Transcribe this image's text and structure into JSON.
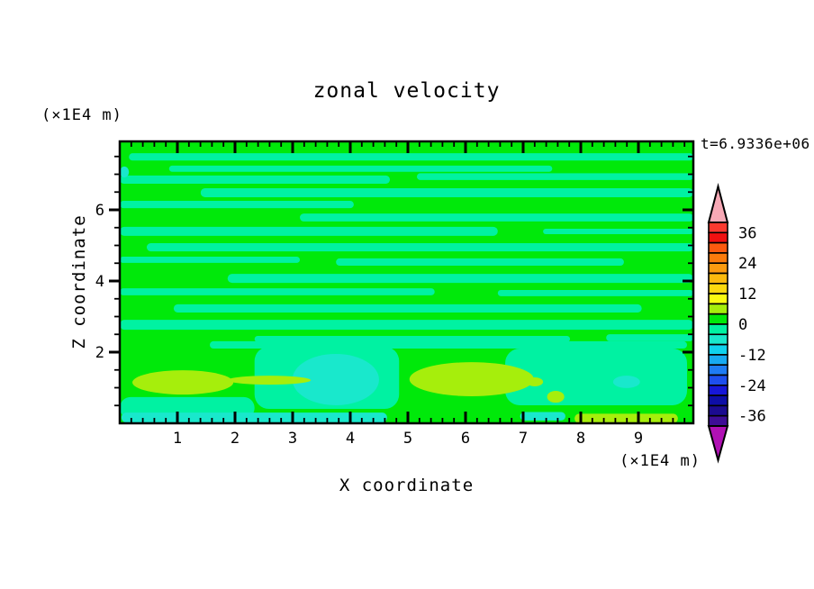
{
  "title": "zonal velocity",
  "timestamp": "t=6.9336e+06",
  "axes": {
    "x_label": "X coordinate",
    "y_label": "Z coordinate",
    "x_units": "(×1E4 m)",
    "y_units": "(×1E4 m)",
    "x_ticks": [
      1,
      2,
      3,
      4,
      5,
      6,
      7,
      8,
      9
    ],
    "y_ticks": [
      2,
      4,
      6
    ],
    "x_minor_per_major": 5,
    "y_minor_per_major": 4
  },
  "colorbar": {
    "labels": [
      36,
      24,
      12,
      0,
      -12,
      -24,
      -36
    ],
    "level_min": -40,
    "level_max": 40,
    "cell_step": 4,
    "cell_colors_top_to_bottom": [
      "#FB3A30",
      "#F01111",
      "#FC5A0F",
      "#FB7B0C",
      "#FC9B10",
      "#FBBA0E",
      "#FCD90F",
      "#FBFA11",
      "#A6EE0C",
      "#00E90A",
      "#00F2A2",
      "#19E8CC",
      "#10D2EE",
      "#18AAF2",
      "#1F7CF4",
      "#1E4FEE",
      "#1717D8",
      "#0E0EA6",
      "#1C0B90",
      "#3F0D96"
    ],
    "over_arrow_color": "#F7A9B6",
    "under_arrow_color": "#B011B4"
  },
  "chart_data": {
    "type": "heatmap",
    "title": "zonal velocity",
    "xlabel": "X coordinate (×1E4 m)",
    "ylabel": "Z coordinate (×1E4 m)",
    "x_range": [
      0,
      10
    ],
    "y_range": [
      0,
      7.9
    ],
    "time_annotation": "t=6.9336e+06",
    "contour_levels": "filled contours every 4 units from -40 to 40",
    "field_summary": "Field values mostly between -4 and +4 (greens) arranged in wavy horizontal streaks; near the bottom boundary there are patches of -8..-4 (turquoise) and +4..+8 (yellow-green).",
    "level_colors": {
      "0..4": "#00E90A",
      "-4..0": "#00F2A2",
      "-8..-4": "#19E8CC",
      "4..8": "#A6EE0C"
    },
    "background_level": "0..4",
    "bands": [
      {
        "level": "-4..0",
        "shape": "rect",
        "x": [
          0.016,
          1.0
        ],
        "y": [
          0.042,
          0.068
        ]
      },
      {
        "level": "-4..0",
        "shape": "rect",
        "x": [
          0.086,
          0.754
        ],
        "y": [
          0.086,
          0.108
        ]
      },
      {
        "level": "-4..0",
        "shape": "rect",
        "x": [
          0.0,
          0.471
        ],
        "y": [
          0.121,
          0.15
        ]
      },
      {
        "level": "-4..0",
        "shape": "rect",
        "x": [
          0.518,
          1.0
        ],
        "y": [
          0.113,
          0.137
        ]
      },
      {
        "level": "-4..0",
        "shape": "rect",
        "x": [
          0.141,
          1.0
        ],
        "y": [
          0.166,
          0.198
        ]
      },
      {
        "level": "-4..0",
        "shape": "rect",
        "x": [
          0.0,
          0.408
        ],
        "y": [
          0.211,
          0.237
        ]
      },
      {
        "level": "-4..0",
        "shape": "rect",
        "x": [
          0.314,
          1.0
        ],
        "y": [
          0.256,
          0.284
        ]
      },
      {
        "level": "-4..0",
        "shape": "rect",
        "x": [
          0.0,
          0.659
        ],
        "y": [
          0.303,
          0.335
        ]
      },
      {
        "level": "-4..0",
        "shape": "rect",
        "x": [
          0.738,
          1.0
        ],
        "y": [
          0.31,
          0.329
        ]
      },
      {
        "level": "-4..0",
        "shape": "rect",
        "x": [
          0.047,
          1.0
        ],
        "y": [
          0.361,
          0.39
        ]
      },
      {
        "level": "-4..0",
        "shape": "rect",
        "x": [
          0.0,
          0.314
        ],
        "y": [
          0.409,
          0.431
        ]
      },
      {
        "level": "-4..0",
        "shape": "rect",
        "x": [
          0.377,
          0.879
        ],
        "y": [
          0.415,
          0.441
        ]
      },
      {
        "level": "-4..0",
        "shape": "rect",
        "x": [
          0.188,
          1.0
        ],
        "y": [
          0.47,
          0.502
        ]
      },
      {
        "level": "-4..0",
        "shape": "rect",
        "x": [
          0.0,
          0.549
        ],
        "y": [
          0.521,
          0.546
        ]
      },
      {
        "level": "-4..0",
        "shape": "rect",
        "x": [
          0.659,
          1.0
        ],
        "y": [
          0.527,
          0.549
        ]
      },
      {
        "level": "-4..0",
        "shape": "rect",
        "x": [
          0.094,
          0.91
        ],
        "y": [
          0.578,
          0.607
        ]
      },
      {
        "level": "-4..0",
        "shape": "rect",
        "x": [
          0.0,
          1.0
        ],
        "y": [
          0.633,
          0.668
        ]
      },
      {
        "level": "-4..0",
        "shape": "rect",
        "x": [
          0.235,
          0.785
        ],
        "y": [
          0.69,
          0.712
        ]
      },
      {
        "level": "-4..0",
        "shape": "rect",
        "x": [
          0.848,
          1.0
        ],
        "y": [
          0.684,
          0.709
        ]
      },
      {
        "level": "-4..0",
        "shape": "rect",
        "x": [
          0.157,
          0.989
        ],
        "y": [
          0.709,
          0.735
        ]
      },
      {
        "level": "-4..0",
        "shape": "rect",
        "x": [
          0.235,
          0.487
        ],
        "y": [
          0.728,
          0.949
        ]
      },
      {
        "level": "-4..0",
        "shape": "rect",
        "x": [
          0.672,
          0.989
        ],
        "y": [
          0.735,
          0.936
        ]
      },
      {
        "level": "-4..0",
        "shape": "rect",
        "x": [
          0.0,
          0.235
        ],
        "y": [
          0.907,
          0.984
        ]
      },
      {
        "level": "-8..-4",
        "shape": "rect",
        "x": [
          0.0,
          0.016
        ],
        "y": [
          0.089,
          0.128
        ]
      },
      {
        "level": "-8..-4",
        "shape": "ellipse",
        "x": [
          0.301,
          0.452
        ],
        "y": [
          0.754,
          0.936
        ]
      },
      {
        "level": "-8..-4",
        "shape": "ellipse",
        "x": [
          0.86,
          0.907
        ],
        "y": [
          0.831,
          0.875
        ]
      },
      {
        "level": "-8..-4",
        "shape": "rect",
        "x": [
          0.003,
          0.466
        ],
        "y": [
          0.962,
          0.997
        ]
      },
      {
        "level": "-8..-4",
        "shape": "rect",
        "x": [
          0.698,
          0.777
        ],
        "y": [
          0.96,
          0.99
        ]
      },
      {
        "level": "4..8",
        "shape": "ellipse",
        "x": [
          0.022,
          0.198
        ],
        "y": [
          0.812,
          0.898
        ]
      },
      {
        "level": "4..8",
        "shape": "ellipse",
        "x": [
          0.188,
          0.333
        ],
        "y": [
          0.831,
          0.863
        ]
      },
      {
        "level": "4..8",
        "shape": "ellipse",
        "x": [
          0.505,
          0.722
        ],
        "y": [
          0.783,
          0.904
        ]
      },
      {
        "level": "4..8",
        "shape": "ellipse",
        "x": [
          0.709,
          0.738
        ],
        "y": [
          0.837,
          0.869
        ]
      },
      {
        "level": "4..8",
        "shape": "ellipse",
        "x": [
          0.745,
          0.775
        ],
        "y": [
          0.885,
          0.927
        ]
      },
      {
        "level": "4..8",
        "shape": "rect",
        "x": [
          0.793,
          0.973
        ],
        "y": [
          0.966,
          1.0
        ]
      }
    ]
  }
}
